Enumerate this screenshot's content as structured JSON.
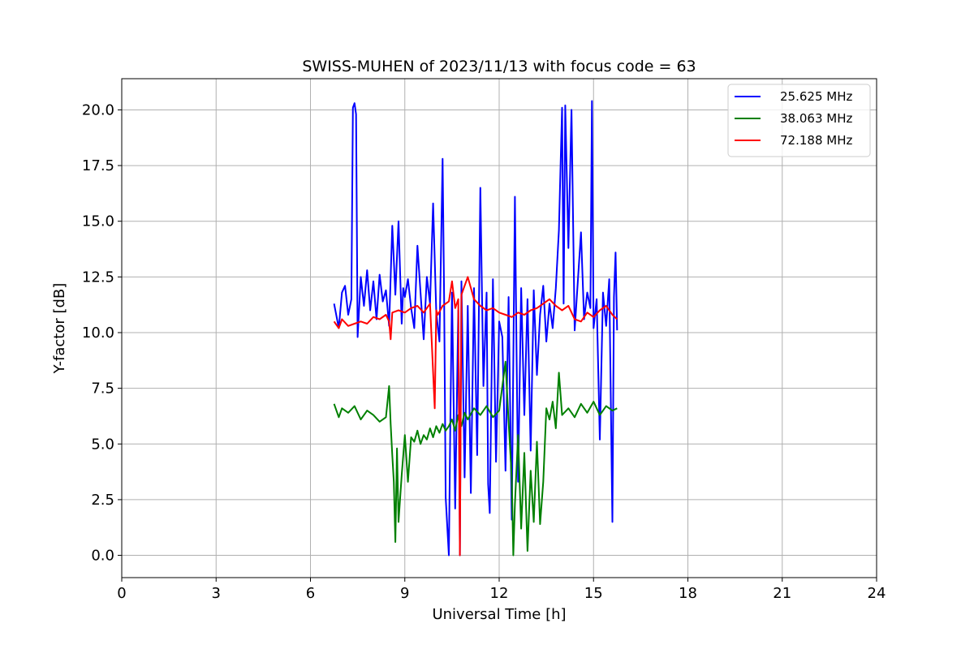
{
  "chart_data": {
    "type": "line",
    "title": "SWISS-MUHEN of 2023/11/13 with focus code = 63",
    "xlabel": "Universal Time [h]",
    "ylabel": "Y-factor [dB]",
    "xlim": [
      0,
      24
    ],
    "ylim": [
      -1.0,
      21.4
    ],
    "xticks": [
      0,
      3,
      6,
      9,
      12,
      15,
      18,
      21,
      24
    ],
    "xtick_labels": [
      "0",
      "3",
      "6",
      "9",
      "12",
      "15",
      "18",
      "21",
      "24"
    ],
    "yticks": [
      0.0,
      2.5,
      5.0,
      7.5,
      10.0,
      12.5,
      15.0,
      17.5,
      20.0
    ],
    "ytick_labels": [
      "0.0",
      "2.5",
      "5.0",
      "7.5",
      "10.0",
      "12.5",
      "15.0",
      "17.5",
      "20.0"
    ],
    "grid": true,
    "legend_position": "top-right",
    "series": [
      {
        "name": "25.625 MHz",
        "color": "#0000ff",
        "x": [
          6.75,
          6.9,
          7.0,
          7.1,
          7.2,
          7.3,
          7.35,
          7.4,
          7.45,
          7.5,
          7.6,
          7.7,
          7.8,
          7.9,
          8.0,
          8.1,
          8.2,
          8.3,
          8.4,
          8.5,
          8.6,
          8.7,
          8.8,
          8.9,
          8.95,
          9.0,
          9.1,
          9.2,
          9.3,
          9.4,
          9.5,
          9.6,
          9.7,
          9.8,
          9.9,
          10.0,
          10.1,
          10.2,
          10.25,
          10.3,
          10.4,
          10.45,
          10.5,
          10.6,
          10.7,
          10.75,
          10.8,
          10.9,
          11.0,
          11.1,
          11.2,
          11.3,
          11.4,
          11.5,
          11.6,
          11.65,
          11.7,
          11.8,
          11.9,
          12.0,
          12.1,
          12.2,
          12.3,
          12.4,
          12.5,
          12.55,
          12.6,
          12.7,
          12.8,
          12.9,
          13.0,
          13.1,
          13.2,
          13.3,
          13.4,
          13.5,
          13.6,
          13.7,
          13.8,
          13.9,
          14.0,
          14.05,
          14.1,
          14.2,
          14.3,
          14.4,
          14.5,
          14.6,
          14.7,
          14.8,
          14.9,
          14.95,
          15.0,
          15.1,
          15.2,
          15.3,
          15.4,
          15.5,
          15.6,
          15.65,
          15.7,
          15.75
        ],
        "y": [
          11.3,
          10.2,
          11.8,
          12.1,
          10.8,
          11.5,
          20.1,
          20.3,
          19.8,
          9.8,
          12.5,
          11.2,
          12.8,
          11.0,
          12.3,
          10.6,
          12.6,
          11.4,
          11.9,
          10.3,
          14.8,
          11.7,
          15.0,
          10.4,
          12.0,
          11.6,
          12.4,
          11.1,
          10.2,
          13.9,
          11.8,
          9.7,
          12.5,
          11.3,
          15.8,
          10.9,
          9.6,
          17.8,
          11.5,
          2.6,
          0.0,
          6.2,
          11.8,
          2.1,
          11.0,
          0.0,
          12.3,
          3.5,
          11.2,
          2.8,
          12.0,
          4.5,
          16.5,
          7.6,
          11.8,
          3.2,
          1.9,
          12.4,
          4.2,
          10.5,
          9.8,
          3.8,
          11.6,
          1.6,
          16.1,
          9.5,
          3.3,
          12.0,
          6.3,
          11.5,
          4.7,
          11.9,
          8.1,
          10.8,
          12.1,
          9.6,
          11.3,
          10.2,
          12.0,
          14.6,
          20.1,
          11.3,
          20.2,
          13.8,
          20.0,
          10.1,
          12.3,
          14.5,
          10.6,
          11.8,
          11.1,
          20.4,
          10.2,
          11.5,
          5.2,
          11.8,
          10.3,
          12.4,
          1.5,
          11.6,
          13.6,
          10.1
        ]
      },
      {
        "name": "38.063 MHz",
        "color": "#008000",
        "x": [
          6.75,
          6.9,
          7.0,
          7.2,
          7.4,
          7.6,
          7.8,
          8.0,
          8.2,
          8.4,
          8.5,
          8.55,
          8.6,
          8.65,
          8.7,
          8.75,
          8.8,
          8.9,
          9.0,
          9.1,
          9.2,
          9.3,
          9.4,
          9.5,
          9.6,
          9.7,
          9.8,
          9.9,
          10.0,
          10.1,
          10.2,
          10.3,
          10.4,
          10.5,
          10.6,
          10.7,
          10.8,
          10.9,
          11.0,
          11.2,
          11.4,
          11.6,
          11.8,
          12.0,
          12.2,
          12.3,
          12.4,
          12.45,
          12.5,
          12.6,
          12.7,
          12.8,
          12.9,
          13.0,
          13.1,
          13.2,
          13.3,
          13.4,
          13.5,
          13.6,
          13.7,
          13.8,
          13.9,
          14.0,
          14.2,
          14.4,
          14.6,
          14.8,
          15.0,
          15.2,
          15.4,
          15.6,
          15.75
        ],
        "y": [
          6.8,
          6.2,
          6.6,
          6.4,
          6.7,
          6.1,
          6.5,
          6.3,
          6.0,
          6.2,
          7.6,
          5.9,
          4.5,
          3.3,
          0.6,
          4.8,
          1.5,
          3.6,
          5.4,
          3.3,
          5.3,
          5.1,
          5.6,
          5.0,
          5.4,
          5.2,
          5.7,
          5.3,
          5.8,
          5.5,
          5.9,
          5.6,
          5.8,
          6.1,
          5.6,
          6.3,
          5.8,
          6.4,
          6.1,
          6.6,
          6.3,
          6.7,
          6.2,
          6.5,
          8.7,
          6.0,
          3.5,
          0.0,
          2.3,
          5.4,
          1.2,
          4.6,
          0.2,
          3.8,
          1.5,
          5.1,
          1.4,
          3.3,
          6.6,
          6.1,
          6.9,
          5.7,
          8.2,
          6.3,
          6.6,
          6.2,
          6.8,
          6.4,
          6.9,
          6.3,
          6.7,
          6.5,
          6.6
        ]
      },
      {
        "name": "72.188 MHz",
        "color": "#ff0000",
        "x": [
          6.75,
          6.9,
          7.0,
          7.2,
          7.4,
          7.6,
          7.8,
          8.0,
          8.2,
          8.4,
          8.5,
          8.55,
          8.6,
          8.8,
          9.0,
          9.2,
          9.4,
          9.6,
          9.8,
          9.95,
          10.0,
          10.05,
          10.2,
          10.4,
          10.5,
          10.6,
          10.7,
          10.75,
          10.8,
          11.0,
          11.2,
          11.4,
          11.6,
          11.8,
          12.0,
          12.2,
          12.4,
          12.6,
          12.8,
          13.0,
          13.2,
          13.4,
          13.6,
          13.8,
          14.0,
          14.2,
          14.4,
          14.6,
          14.8,
          15.0,
          15.2,
          15.4,
          15.6,
          15.75
        ],
        "y": [
          10.5,
          10.2,
          10.6,
          10.3,
          10.4,
          10.5,
          10.4,
          10.7,
          10.6,
          10.8,
          10.5,
          9.7,
          10.9,
          11.0,
          10.9,
          11.1,
          11.2,
          10.9,
          11.3,
          6.6,
          11.0,
          10.8,
          11.2,
          11.4,
          12.3,
          11.1,
          11.5,
          0.0,
          11.7,
          12.5,
          11.5,
          11.2,
          11.0,
          11.1,
          10.9,
          10.8,
          10.7,
          10.9,
          10.8,
          11.0,
          11.1,
          11.3,
          11.5,
          11.2,
          11.0,
          11.2,
          10.6,
          10.5,
          10.9,
          10.7,
          11.0,
          11.2,
          10.8,
          10.6
        ]
      }
    ]
  }
}
